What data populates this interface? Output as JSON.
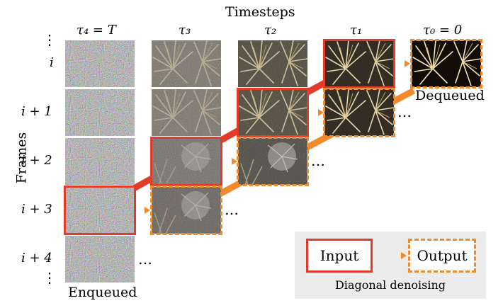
{
  "header": {
    "title": "Timesteps"
  },
  "axis": {
    "frames_label": "Frames"
  },
  "columns": [
    {
      "label": "τ₄ = T"
    },
    {
      "label": "τ₃"
    },
    {
      "label": "τ₂"
    },
    {
      "label": "τ₁"
    },
    {
      "label": "τ₀ = 0"
    }
  ],
  "rows": [
    {
      "label": "i"
    },
    {
      "label": "i + 1"
    },
    {
      "label": "i + 2"
    },
    {
      "label": "i + 3"
    },
    {
      "label": "i + 4"
    }
  ],
  "vertical_ellipsis": "⋮",
  "ellipsis": "…",
  "status": {
    "enqueued": "Enqueued",
    "dequeued": "Dequeued"
  },
  "legend": {
    "input": "Input",
    "output": "Output",
    "caption": "Diagonal denoising"
  },
  "colors": {
    "input": "#e23b2a",
    "output": "#f08a2b",
    "legend_bg": "#ececec"
  }
}
